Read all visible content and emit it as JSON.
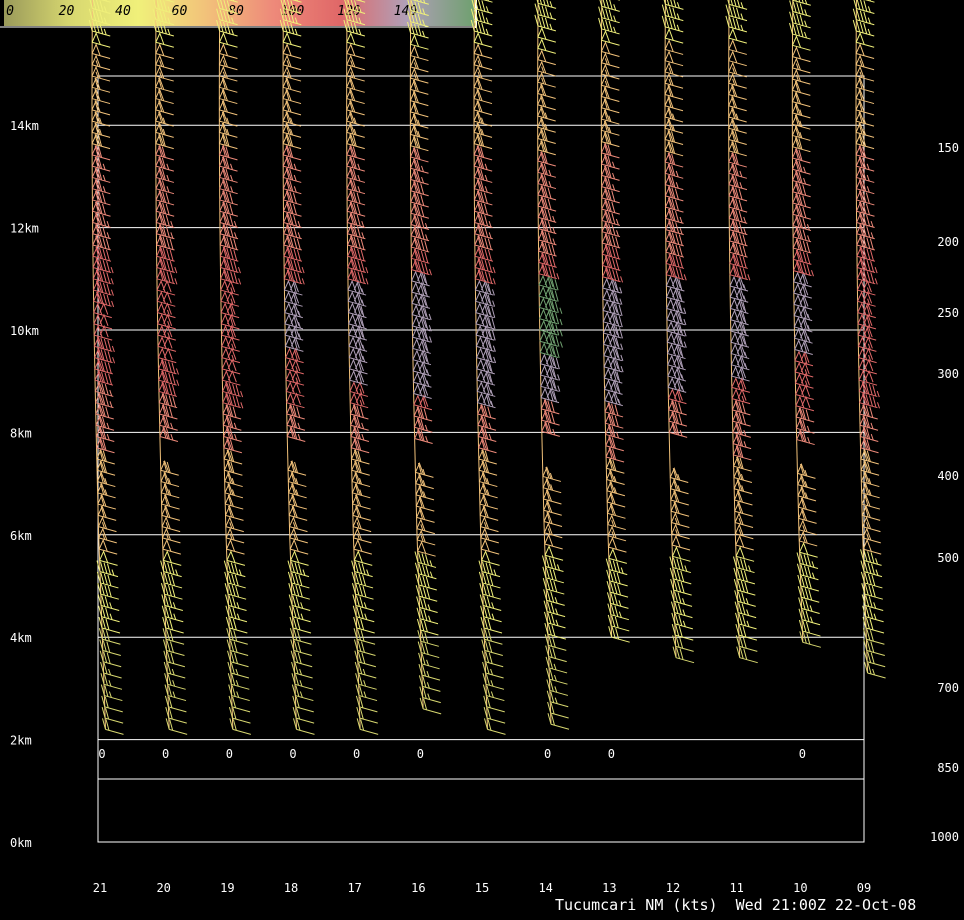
{
  "chart_data": {
    "type": "wind-profiler",
    "title": "Tucumcari NM (kts)",
    "timestamp": "Wed 21:00Z 22-Oct-08",
    "colorbar": {
      "labels": [
        "0",
        "20",
        "40",
        "60",
        "80",
        "100",
        "120",
        "140"
      ],
      "colors": [
        "#9a9a5a",
        "#d8d870",
        "#f0f07a",
        "#f2c27a",
        "#ee8a7a",
        "#e06868",
        "#b0a0b8",
        "#70a070"
      ]
    },
    "height_axis": {
      "unit": "km",
      "ticks": [
        "0km",
        "2km",
        "4km",
        "6km",
        "8km",
        "10km",
        "12km",
        "14km"
      ],
      "values": [
        0,
        2,
        4,
        6,
        8,
        10,
        12,
        14
      ]
    },
    "pressure_axis": {
      "ticks": [
        "150",
        "200",
        "250",
        "300",
        "400",
        "500",
        "700",
        "850",
        "1000"
      ]
    },
    "time_axis": {
      "ticks": [
        "21",
        "20",
        "19",
        "18",
        "17",
        "16",
        "15",
        "14",
        "13",
        "12",
        "11",
        "10",
        "09"
      ]
    },
    "ground_labels": [
      "0",
      "0",
      "0",
      "0",
      "0",
      "0",
      "0",
      "0",
      "0"
    ],
    "speed_profile_kts": {
      "heights_km": [
        2.3,
        3,
        4,
        5,
        6,
        7,
        8,
        9,
        10,
        11,
        12,
        13,
        14,
        15,
        16
      ],
      "speeds": [
        20,
        25,
        30,
        40,
        55,
        65,
        75,
        90,
        100,
        95,
        85,
        75,
        65,
        55,
        45
      ]
    }
  }
}
